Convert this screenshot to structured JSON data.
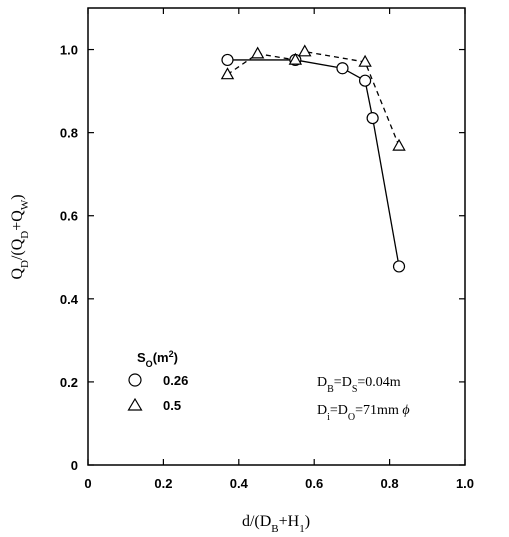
{
  "chart_data": {
    "type": "line",
    "xlabel": "d/(D_B+H_1)",
    "ylabel": "Q_D/(Q_D+Q_W)",
    "xlim": [
      0,
      1.0
    ],
    "ylim": [
      0,
      1.1
    ],
    "xticks": [
      0,
      0.2,
      0.4,
      0.6,
      0.8,
      1.0
    ],
    "xtick_labels": [
      "0",
      "0.2",
      "0.4",
      "0.6",
      "0.8",
      "1.0"
    ],
    "yticks": [
      0,
      0.2,
      0.4,
      0.6,
      0.8,
      1.0
    ],
    "ytick_labels": [
      "0",
      "0.2",
      "0.4",
      "0.6",
      "0.8",
      "1.0"
    ],
    "grid": false,
    "legend": {
      "title": "S_O(m²)",
      "placement": "bottom-left"
    },
    "series": [
      {
        "name": "0.26",
        "marker": "circle",
        "line": "solid",
        "x": [
          0.37,
          0.55,
          0.675,
          0.735,
          0.755,
          0.825
        ],
        "y": [
          0.975,
          0.975,
          0.955,
          0.925,
          0.835,
          0.478
        ]
      },
      {
        "name": "0.5",
        "marker": "triangle",
        "line": "dashed",
        "x": [
          0.37,
          0.45,
          0.55,
          0.575,
          0.735,
          0.825
        ],
        "y": [
          0.94,
          0.99,
          0.975,
          0.995,
          0.97,
          0.768
        ]
      }
    ],
    "annotations": [
      "D_B=D_S=0.04m",
      "D_i=D_O=71mm ϕ"
    ]
  }
}
